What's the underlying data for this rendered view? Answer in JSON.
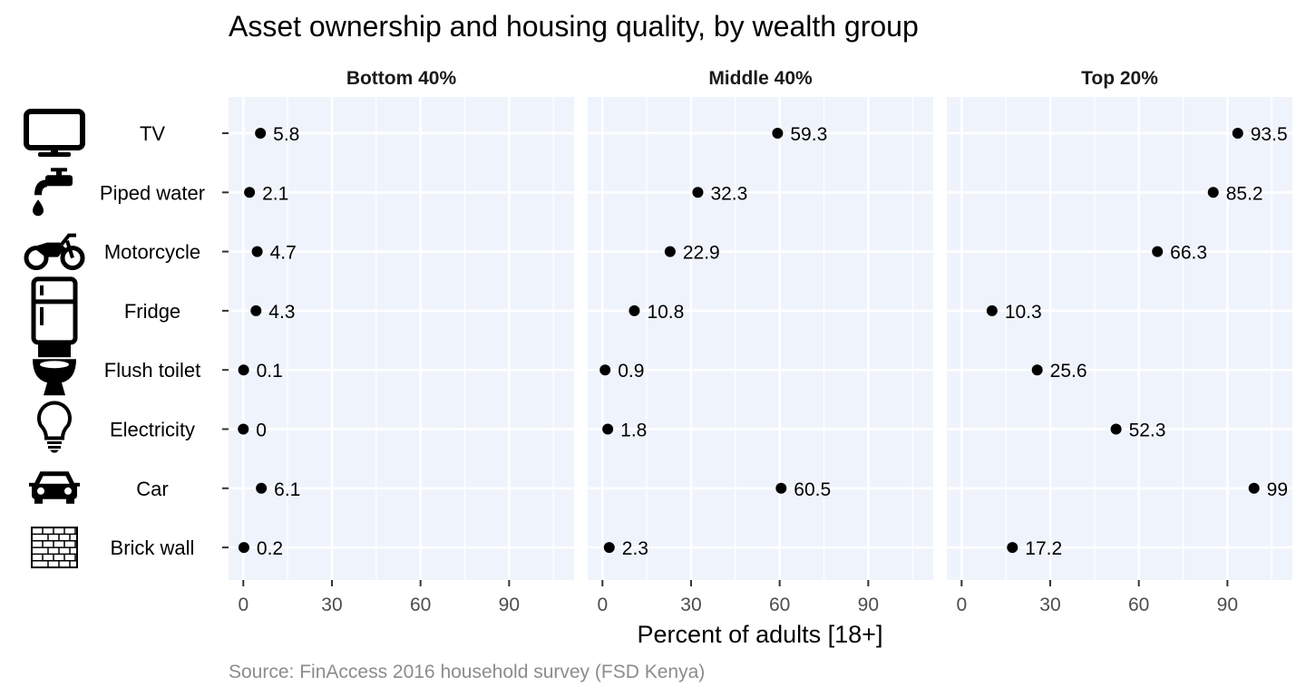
{
  "chart_data": {
    "type": "scatter",
    "title": "Asset ownership and housing quality, by wealth group",
    "xlabel": "Percent of adults [18+]",
    "caption": "Source: FinAccess 2016 household survey (FSD Kenya)",
    "categories": [
      "TV",
      "Piped water",
      "Motorcycle",
      "Fridge",
      "Flush toilet",
      "Electricity",
      "Car",
      "Brick wall"
    ],
    "icons": [
      "tv-icon",
      "tap-icon",
      "motorcycle-icon",
      "fridge-icon",
      "toilet-icon",
      "lightbulb-icon",
      "car-icon",
      "brick-wall-icon"
    ],
    "xlim": [
      -5,
      112
    ],
    "x_ticks": [
      0,
      30,
      60,
      90
    ],
    "grid": true,
    "panel_background": "#eff4fc",
    "point_color": "#000000",
    "facets": [
      {
        "name": "Bottom 40%",
        "values": [
          5.8,
          2.1,
          4.7,
          4.3,
          0.1,
          0,
          6.1,
          0.2
        ]
      },
      {
        "name": "Middle 40%",
        "values": [
          59.3,
          32.3,
          22.9,
          10.8,
          0.9,
          1.8,
          60.5,
          2.3
        ]
      },
      {
        "name": "Top 20%",
        "values": [
          93.5,
          85.2,
          66.3,
          10.3,
          25.6,
          52.3,
          99,
          17.2
        ]
      }
    ]
  }
}
